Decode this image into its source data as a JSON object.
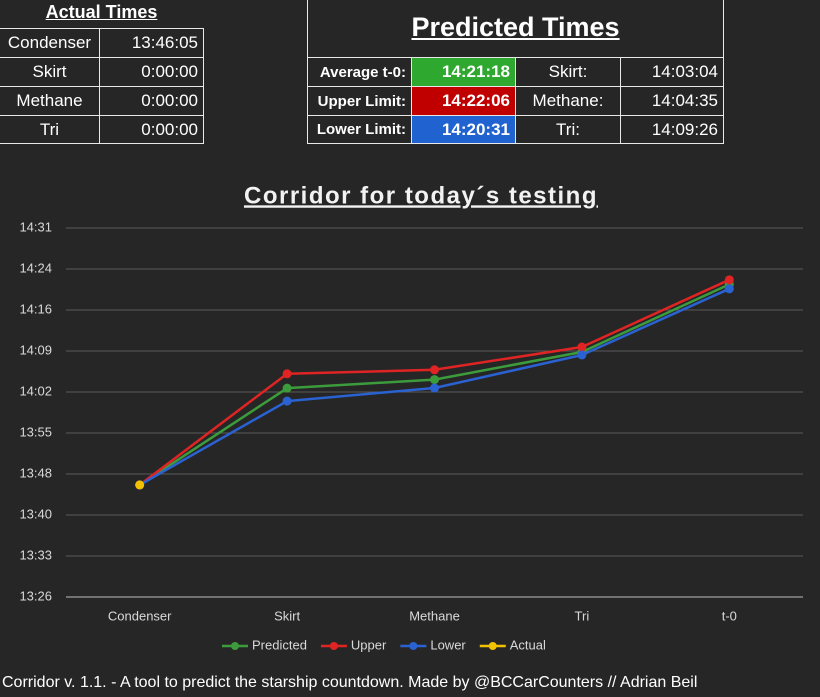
{
  "actual_times": {
    "title": "Actual Times",
    "rows": [
      [
        "Condenser",
        "13:46:05"
      ],
      [
        "Skirt",
        "0:00:00"
      ],
      [
        "Methane",
        "0:00:00"
      ],
      [
        "Tri",
        "0:00:00"
      ]
    ]
  },
  "predicted_times": {
    "title": "Predicted Times",
    "rows": [
      [
        "Average t-0:",
        "14:21:18",
        "Skirt:",
        "14:03:04"
      ],
      [
        "Upper Limit:",
        "14:22:06",
        "Methane:",
        "14:04:35"
      ],
      [
        "Lower Limit:",
        "14:20:31",
        "Tri:",
        "14:09:26"
      ]
    ]
  },
  "chart_data": {
    "type": "line",
    "title": "Corridor for today´s testing",
    "categories": [
      "Condenser",
      "Skirt",
      "Methane",
      "Tri",
      "t-0"
    ],
    "series": [
      {
        "name": "Predicted",
        "color": "#3c9c3c",
        "values": [
          826.08,
          843.07,
          844.58,
          849.43,
          861.3
        ]
      },
      {
        "name": "Upper",
        "color": "#e02424",
        "values": [
          826.08,
          845.6,
          846.3,
          850.3,
          862.1
        ]
      },
      {
        "name": "Lower",
        "color": "#2a62d2",
        "values": [
          826.08,
          840.8,
          843.1,
          848.9,
          860.52
        ]
      },
      {
        "name": "Actual",
        "color": "#f2c200",
        "values": [
          826.08,
          null,
          null,
          null,
          null
        ]
      }
    ],
    "ylim": [
      806.4,
      871.2
    ],
    "yticks": [
      {
        "value": 806.4,
        "label": "13:26"
      },
      {
        "value": 813.6,
        "label": "13:33"
      },
      {
        "value": 820.8,
        "label": "13:40"
      },
      {
        "value": 828,
        "label": "13:48"
      },
      {
        "value": 835.2,
        "label": "13:55"
      },
      {
        "value": 842.4,
        "label": "14:02"
      },
      {
        "value": 849.6,
        "label": "14:09"
      },
      {
        "value": 856.8,
        "label": "14:16"
      },
      {
        "value": 864,
        "label": "14:24"
      },
      {
        "value": 871.2,
        "label": "14:31"
      }
    ],
    "grid": true,
    "legend": "bottom"
  },
  "footer": "Corridor v. 1.1.  - A tool to predict the starship countdown. Made by @BCCarCounters // Adrian Beil"
}
